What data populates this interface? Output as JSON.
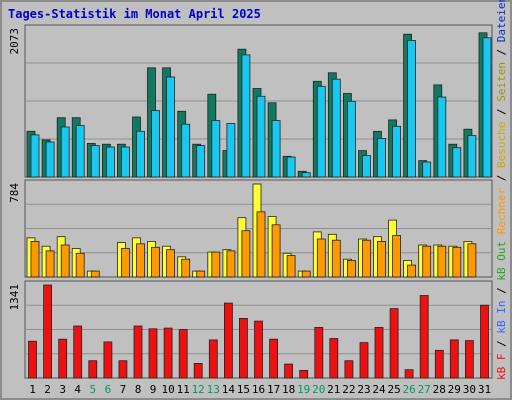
{
  "colors": {
    "frame": "#8c8c8c",
    "panel_bg": "#c0c0c0",
    "grid": "#8f8f8f",
    "title": "#0000cc",
    "day_weekday": "#000000",
    "day_weekend": "#009966",
    "hits_bar": "#0f7a5f",
    "files_bar": "#19c8f0",
    "pages_bar": "#ffff33",
    "visits_bar": "#ff9900",
    "kbf_bar": "#ee1111"
  },
  "chart_data": {
    "type": "bar",
    "title": "Tages-Statistik im Monat April 2025",
    "categories": [
      "1",
      "2",
      "3",
      "4",
      "5",
      "6",
      "7",
      "8",
      "9",
      "10",
      "11",
      "12",
      "13",
      "14",
      "15",
      "16",
      "17",
      "18",
      "19",
      "20",
      "21",
      "22",
      "23",
      "24",
      "25",
      "26",
      "27",
      "28",
      "29",
      "30",
      "31"
    ],
    "weekend_days": [
      "5",
      "6",
      "12",
      "13",
      "19",
      "20",
      "26",
      "27"
    ],
    "legend_right": [
      "kB F",
      "/",
      "kB In",
      "/",
      "kB Out",
      "Rechner",
      "/",
      "Besuche",
      "/",
      "Seiten",
      "/",
      "Dateien",
      "/",
      "Anfragen"
    ],
    "panels": [
      {
        "id": "requests",
        "ylabel": "2073",
        "ymax": 2073,
        "series": [
          {
            "name": "Anfragen",
            "color_key": "hits_bar",
            "values": [
              640,
              520,
              830,
              830,
              470,
              460,
              460,
              840,
              1530,
              1530,
              920,
              460,
              1160,
              370,
              1790,
              1240,
              1040,
              290,
              80,
              1340,
              1460,
              1170,
              370,
              640,
              800,
              2000,
              230,
              1290,
              460,
              670,
              2020
            ]
          },
          {
            "name": "Dateien",
            "color_key": "files_bar",
            "values": [
              590,
              490,
              700,
              720,
              440,
              420,
              420,
              640,
              930,
              1400,
              740,
              440,
              790,
              750,
              1710,
              1130,
              790,
              280,
              60,
              1270,
              1370,
              1060,
              300,
              540,
              710,
              1910,
              210,
              1120,
              410,
              580,
              1950
            ]
          }
        ]
      },
      {
        "id": "visits",
        "ylabel": "784",
        "ymax": 784,
        "series": [
          {
            "name": "Seiten",
            "color_key": "pages_bar",
            "values": [
              330,
              260,
              340,
              240,
              50,
              0,
              290,
              330,
              300,
              260,
              170,
              50,
              210,
              230,
              500,
              784,
              510,
              200,
              50,
              380,
              360,
              150,
              320,
              340,
              480,
              140,
              270,
              270,
              260,
              300,
              0
            ]
          },
          {
            "name": "Rechner",
            "color_key": "visits_bar",
            "values": [
              300,
              220,
              270,
              200,
              50,
              0,
              240,
              280,
              250,
              230,
              150,
              50,
              210,
              220,
              390,
              550,
              440,
              180,
              50,
              320,
              310,
              140,
              310,
              300,
              350,
              100,
              260,
              260,
              250,
              280,
              0
            ]
          }
        ]
      },
      {
        "id": "kilobytes",
        "ylabel": "1341",
        "ymax": 1341,
        "series": [
          {
            "name": "kB F",
            "color_key": "kbf_bar",
            "values": [
              530,
              1341,
              560,
              750,
              250,
              520,
              250,
              750,
              710,
              720,
              700,
              210,
              550,
              1080,
              860,
              820,
              560,
              200,
              110,
              730,
              570,
              250,
              510,
              730,
              1000,
              120,
              1190,
              400,
              550,
              540,
              1050
            ]
          }
        ]
      }
    ]
  }
}
